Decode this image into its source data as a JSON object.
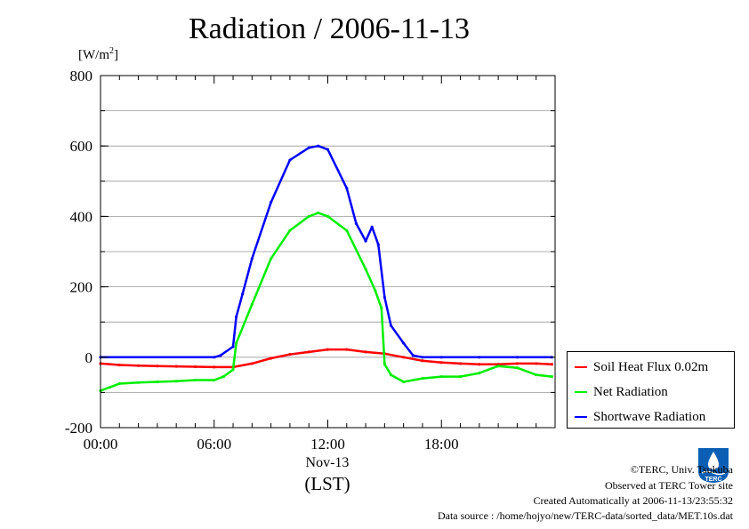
{
  "title": "Radiation / 2006-11-13",
  "units": {
    "prefix": "[W/m",
    "sup": "2",
    "suffix": "]"
  },
  "x_axis": {
    "date_label": "Nov-13",
    "unit_label": "(LST)"
  },
  "footer": {
    "copyright": "©TERC, Univ. Tsukuba",
    "site": "Observed at TERC Tower site",
    "created": "Created Automatically at 2006-11-13/23:55:32",
    "source": "Data source : /home/hojyo/new/TERC-data/sorted_data/MET.10s.dat"
  },
  "logo_text": "TERC",
  "chart_data": {
    "type": "line",
    "title": "Radiation / 2006-11-13",
    "xlabel": "Nov-13 (LST)",
    "ylabel": "[W/m2]",
    "x_range": [
      "00:00",
      "24:00"
    ],
    "x_ticks": [
      "00:00",
      "06:00",
      "12:00",
      "18:00"
    ],
    "ylim": [
      -200,
      800
    ],
    "y_ticks": [
      -200,
      0,
      200,
      400,
      600,
      800
    ],
    "grid": "horizontal",
    "legend_position": "bottom-right outside",
    "series": [
      {
        "name": "Soil Heat Flux 0.02m",
        "color": "#ff0000",
        "x": [
          "00:00",
          "01:00",
          "02:00",
          "03:00",
          "04:00",
          "05:00",
          "06:00",
          "07:00",
          "08:00",
          "09:00",
          "10:00",
          "11:00",
          "12:00",
          "13:00",
          "14:00",
          "15:00",
          "16:00",
          "17:00",
          "18:00",
          "19:00",
          "20:00",
          "21:00",
          "22:00",
          "23:00",
          "23:50"
        ],
        "values": [
          -18,
          -22,
          -24,
          -25,
          -26,
          -27,
          -28,
          -28,
          -18,
          -3,
          8,
          15,
          22,
          22,
          15,
          10,
          0,
          -10,
          -15,
          -18,
          -20,
          -20,
          -18,
          -18,
          -20
        ]
      },
      {
        "name": "Net Radiation",
        "color": "#00ee00",
        "x": [
          "00:00",
          "00:30",
          "01:00",
          "02:00",
          "03:00",
          "04:00",
          "05:00",
          "06:00",
          "06:30",
          "07:00",
          "07:10",
          "08:00",
          "09:00",
          "10:00",
          "11:00",
          "11:30",
          "12:00",
          "13:00",
          "14:00",
          "14:30",
          "14:50",
          "15:00",
          "15:20",
          "16:00",
          "17:00",
          "18:00",
          "19:00",
          "20:00",
          "21:00",
          "22:00",
          "23:00",
          "23:50"
        ],
        "values": [
          -95,
          -85,
          -75,
          -72,
          -70,
          -68,
          -65,
          -65,
          -55,
          -35,
          40,
          150,
          280,
          360,
          400,
          410,
          400,
          360,
          250,
          190,
          140,
          -20,
          -50,
          -70,
          -60,
          -55,
          -55,
          -45,
          -25,
          -30,
          -50,
          -55
        ]
      },
      {
        "name": "Shortwave Radiation",
        "color": "#0000ff",
        "x": [
          "00:00",
          "06:00",
          "06:20",
          "07:00",
          "07:10",
          "07:30",
          "08:00",
          "09:00",
          "10:00",
          "11:00",
          "11:30",
          "12:00",
          "13:00",
          "13:30",
          "14:00",
          "14:20",
          "14:40",
          "15:00",
          "15:20",
          "16:00",
          "16:30",
          "17:00",
          "18:00",
          "20:00",
          "22:00",
          "23:50"
        ],
        "values": [
          0,
          0,
          5,
          30,
          115,
          180,
          280,
          440,
          560,
          595,
          600,
          590,
          480,
          380,
          330,
          370,
          320,
          170,
          90,
          40,
          5,
          0,
          0,
          0,
          0,
          0
        ]
      }
    ]
  }
}
